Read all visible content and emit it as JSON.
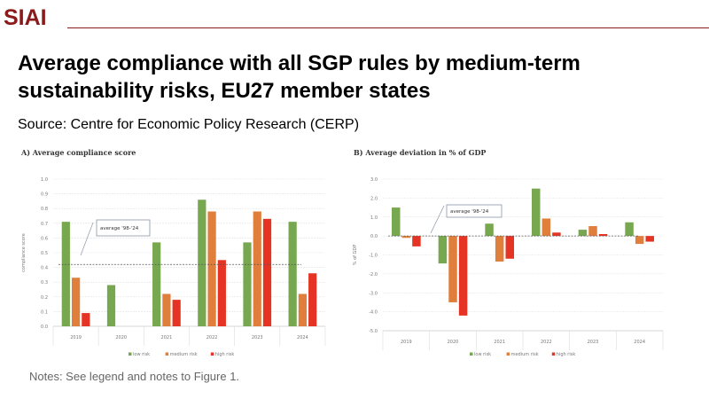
{
  "header": {
    "logo": "SIAI",
    "title": "Average compliance with all SGP rules by medium-term sustainability risks, EU27 member states",
    "source": "Source: Centre for Economic Policy Research (CERP)"
  },
  "notes": "Notes: See legend and notes to Figure 1.",
  "colors": {
    "low": "#77a84f",
    "medium": "#e07e3c",
    "high": "#e53423",
    "brand": "#8b1a1a"
  },
  "chart_data": [
    {
      "type": "bar",
      "title": "A) Average compliance score",
      "ylabel": "compliance score",
      "xlabel": "",
      "ylim": [
        0,
        1
      ],
      "yticks": [
        "0.0",
        "0.1",
        "0.2",
        "0.3",
        "0.4",
        "0.5",
        "0.6",
        "0.7",
        "0.8",
        "0.9",
        "1.0"
      ],
      "categories": [
        "2019",
        "2020",
        "2021",
        "2022",
        "2023",
        "2024"
      ],
      "series": [
        {
          "name": "low risk",
          "values": [
            0.71,
            0.28,
            0.57,
            0.86,
            0.57,
            0.71
          ]
        },
        {
          "name": "medium risk",
          "values": [
            0.33,
            0,
            0.22,
            0.78,
            0.78,
            0.22
          ]
        },
        {
          "name": "high risk",
          "values": [
            0.09,
            0,
            0.18,
            0.45,
            0.73,
            0.36
          ]
        }
      ],
      "reference_line": {
        "label": "average '98-'24",
        "value": 0.42
      },
      "grid": true,
      "legend": "bottom"
    },
    {
      "type": "bar",
      "title": "B) Average deviation in % of GDP",
      "ylabel": "% of GDP",
      "xlabel": "",
      "ylim": [
        -5,
        3
      ],
      "yticks": [
        "-5.0",
        "-4.0",
        "-3.0",
        "-2.0",
        "-1.0",
        "0.0",
        "1.0",
        "2.0",
        "3.0"
      ],
      "categories": [
        "2019",
        "2020",
        "2021",
        "2022",
        "2023",
        "2024"
      ],
      "series": [
        {
          "name": "low risk",
          "values": [
            1.5,
            -1.45,
            0.65,
            2.5,
            0.33,
            0.72
          ]
        },
        {
          "name": "medium risk",
          "values": [
            -0.1,
            -3.5,
            -1.35,
            0.92,
            0.52,
            -0.42
          ]
        },
        {
          "name": "high risk",
          "values": [
            -0.55,
            -4.2,
            -1.2,
            0.18,
            0.1,
            -0.3
          ]
        }
      ],
      "reference_line": {
        "label": "average '98-'24",
        "value": 0.0
      },
      "grid": true,
      "legend": "bottom"
    }
  ]
}
